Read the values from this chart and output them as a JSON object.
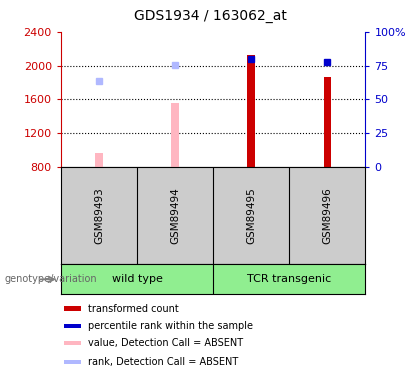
{
  "title": "GDS1934 / 163062_at",
  "samples": [
    "GSM89493",
    "GSM89494",
    "GSM89495",
    "GSM89496"
  ],
  "ylim": [
    800,
    2400
  ],
  "yticks": [
    800,
    1200,
    1600,
    2000,
    2400
  ],
  "right_yticks": [
    0,
    25,
    50,
    75,
    100
  ],
  "bar_bottom": 800,
  "transformed_counts": [
    null,
    null,
    2120,
    1870
  ],
  "absent_values": [
    960,
    1560,
    null,
    null
  ],
  "rank_absent": [
    1820,
    2010,
    null,
    null
  ],
  "rank_absent_color": "#b0b8ff",
  "percentile_present": [
    null,
    null,
    2080,
    2045
  ],
  "percentile_color": "#0000cc",
  "transformed_color": "#cc0000",
  "absent_color": "#ffb6c1",
  "left_axis_color": "#cc0000",
  "right_axis_color": "#0000cc",
  "background_label": "#cccccc",
  "background_group": "#90EE90",
  "group_divider": 1.5,
  "legend_items": [
    {
      "label": "transformed count",
      "color": "#cc0000"
    },
    {
      "label": "percentile rank within the sample",
      "color": "#0000cc"
    },
    {
      "label": "value, Detection Call = ABSENT",
      "color": "#ffb6c1"
    },
    {
      "label": "rank, Detection Call = ABSENT",
      "color": "#b0b8ff"
    }
  ],
  "genotype_label": "genotype/variation",
  "bar_width": 0.1
}
